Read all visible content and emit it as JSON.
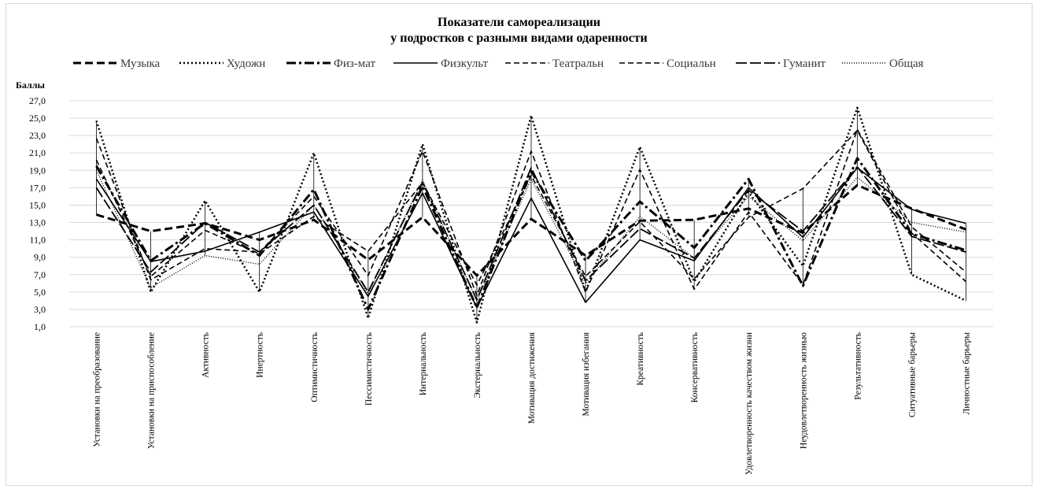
{
  "chart_data": {
    "type": "line",
    "title_line1": "Показатели самореализации",
    "title_line2": "у подростков с разными видами одаренности",
    "ylabel": "Баллы",
    "ylim": [
      1,
      27
    ],
    "yticks": [
      "1,0",
      "3,0",
      "5,0",
      "7,0",
      "9,0",
      "11,0",
      "13,0",
      "15,0",
      "17,0",
      "19,0",
      "21,0",
      "23,0",
      "25,0",
      "27,0"
    ],
    "grid": true,
    "legend_position": "top",
    "categories": [
      "Установки на преобразование",
      "Установки на приспособление",
      "Активность",
      "Инертность",
      "Оптимистичность",
      "Пессимистичность",
      "Интернальность",
      "Экстернальность",
      "Мотивация достижения",
      "Мотивация избегания",
      "Креативность",
      "Консервативность",
      "Удовлетворенность качеством жизни",
      "Неудовлетворенность жизнью",
      "Результативность",
      "Ситуативные барьеры",
      "Личностные барьеры"
    ],
    "series": [
      {
        "name": "Музыка",
        "dash": "10,5",
        "width": 3,
        "values": [
          13.9,
          12.0,
          12.9,
          11.0,
          13.3,
          8.7,
          13.6,
          6.9,
          13.4,
          9.2,
          13.2,
          13.3,
          14.6,
          11.8,
          17.3,
          14.6,
          12.2
        ]
      },
      {
        "name": "Художн",
        "dash": "2,3",
        "width": 2.5,
        "values": [
          24.7,
          5.0,
          15.5,
          5.0,
          21.0,
          2.0,
          22.0,
          1.5,
          25.3,
          5.0,
          21.7,
          6.2,
          16.5,
          8.0,
          26.2,
          7.0,
          4.0
        ]
      },
      {
        "name": "Физ-мат",
        "dash": "12,4,3,4",
        "width": 3,
        "values": [
          19.5,
          8.6,
          12.9,
          9.2,
          16.8,
          3.0,
          17.2,
          3.2,
          18.9,
          8.6,
          15.4,
          10.1,
          18.0,
          5.7,
          20.4,
          11.7,
          9.8
        ]
      },
      {
        "name": "Физкульт",
        "dash": "",
        "width": 1.6,
        "values": [
          18.0,
          8.5,
          9.7,
          11.9,
          14.2,
          4.5,
          16.4,
          3.2,
          15.8,
          3.8,
          11.0,
          8.6,
          17.0,
          11.3,
          19.3,
          14.5,
          12.9
        ]
      },
      {
        "name": "Театральн",
        "dash": "7,4",
        "width": 1.6,
        "values": [
          22.7,
          6.4,
          10.0,
          9.6,
          16.0,
          6.9,
          21.2,
          4.6,
          21.2,
          5.0,
          19.1,
          5.3,
          14.2,
          5.8,
          23.7,
          12.5,
          7.3
        ]
      },
      {
        "name": "Социальн",
        "dash": "7,4",
        "width": 1.6,
        "values": [
          20.2,
          6.8,
          12.1,
          9.4,
          13.7,
          9.7,
          17.6,
          5.8,
          18.4,
          6.8,
          13.1,
          6.5,
          13.6,
          16.9,
          23.6,
          11.8,
          6.2
        ]
      },
      {
        "name": "Гуманит",
        "dash": "14,4",
        "width": 1.8,
        "values": [
          17.0,
          7.3,
          13.0,
          9.6,
          15.0,
          5.0,
          17.6,
          4.1,
          19.3,
          6.3,
          12.3,
          8.9,
          16.7,
          12.0,
          19.4,
          11.4,
          9.6
        ]
      },
      {
        "name": "Общая",
        "dash": "1,2",
        "width": 1.4,
        "values": [
          19.0,
          5.5,
          9.2,
          8.2,
          15.0,
          4.8,
          17.9,
          4.0,
          18.0,
          6.0,
          13.7,
          8.9,
          16.0,
          10.9,
          18.2,
          13.0,
          11.9
        ]
      }
    ]
  }
}
